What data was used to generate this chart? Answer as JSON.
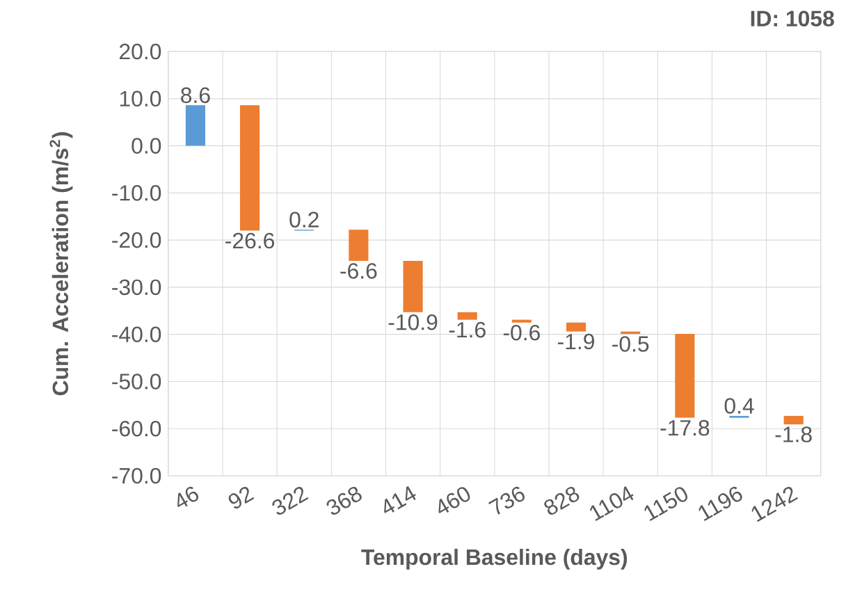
{
  "chart_data": {
    "type": "bar",
    "title": "ID: 1058",
    "xlabel": "Temporal Baseline (days)",
    "ylabel": "Cum. Acceleration (m/s$^{2}$)",
    "categories": [
      "46",
      "92",
      "322",
      "368",
      "414",
      "460",
      "736",
      "828",
      "1104",
      "1150",
      "1196",
      "1242"
    ],
    "values": [
      8.6,
      -26.6,
      0.2,
      -6.6,
      -10.9,
      -1.6,
      -0.6,
      -1.9,
      -0.5,
      -17.8,
      0.4,
      -1.8
    ],
    "base": [
      0,
      8.6,
      -18.0,
      -17.8,
      -24.4,
      -35.3,
      -36.9,
      -37.5,
      -39.4,
      -39.9,
      -57.7,
      -57.3
    ],
    "colors": [
      "#5b9bd5",
      "#ed7d31",
      "#5b9bd5",
      "#ed7d31",
      "#ed7d31",
      "#ed7d31",
      "#ed7d31",
      "#ed7d31",
      "#ed7d31",
      "#ed7d31",
      "#5b9bd5",
      "#ed7d31"
    ],
    "ylim": [
      -70,
      20
    ],
    "yticks": [
      {
        "value": -70,
        "label": "-70.0"
      },
      {
        "value": -60,
        "label": "-60.0"
      },
      {
        "value": -50,
        "label": "-50.0"
      },
      {
        "value": -40,
        "label": "-40.0"
      },
      {
        "value": -30,
        "label": "-30.0"
      },
      {
        "value": -20,
        "label": "-20.0"
      },
      {
        "value": -10,
        "label": "-10.0"
      },
      {
        "value": 0,
        "label": "0.0"
      },
      {
        "value": 10,
        "label": "10.0"
      },
      {
        "value": 20,
        "label": "20.0"
      }
    ],
    "grid": true,
    "data_labels": true
  }
}
